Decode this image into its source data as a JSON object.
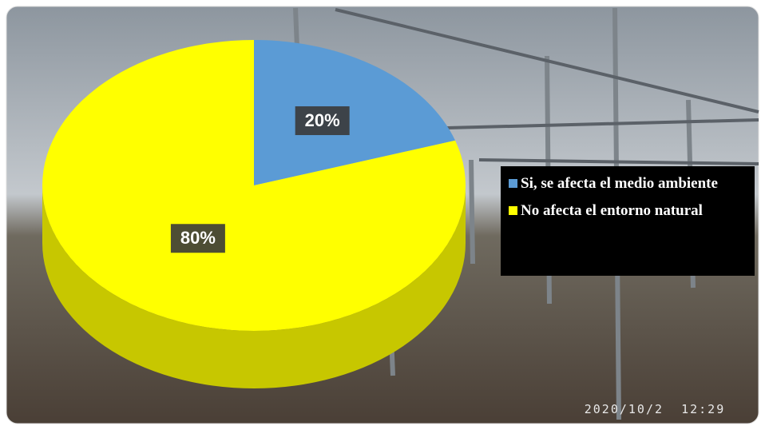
{
  "chart_data": {
    "type": "pie",
    "series": [
      {
        "name": "Si, se afecta el medio ambiente",
        "color": "#5b9bd5",
        "values": [
          20
        ],
        "value_labels": [
          "20%"
        ]
      },
      {
        "name": "No afecta el entorno natural",
        "color": "#ffff00",
        "values": [
          80
        ],
        "value_labels": [
          "80%"
        ]
      }
    ],
    "legend": "right",
    "annotation": "2020/10/2  12:29"
  }
}
